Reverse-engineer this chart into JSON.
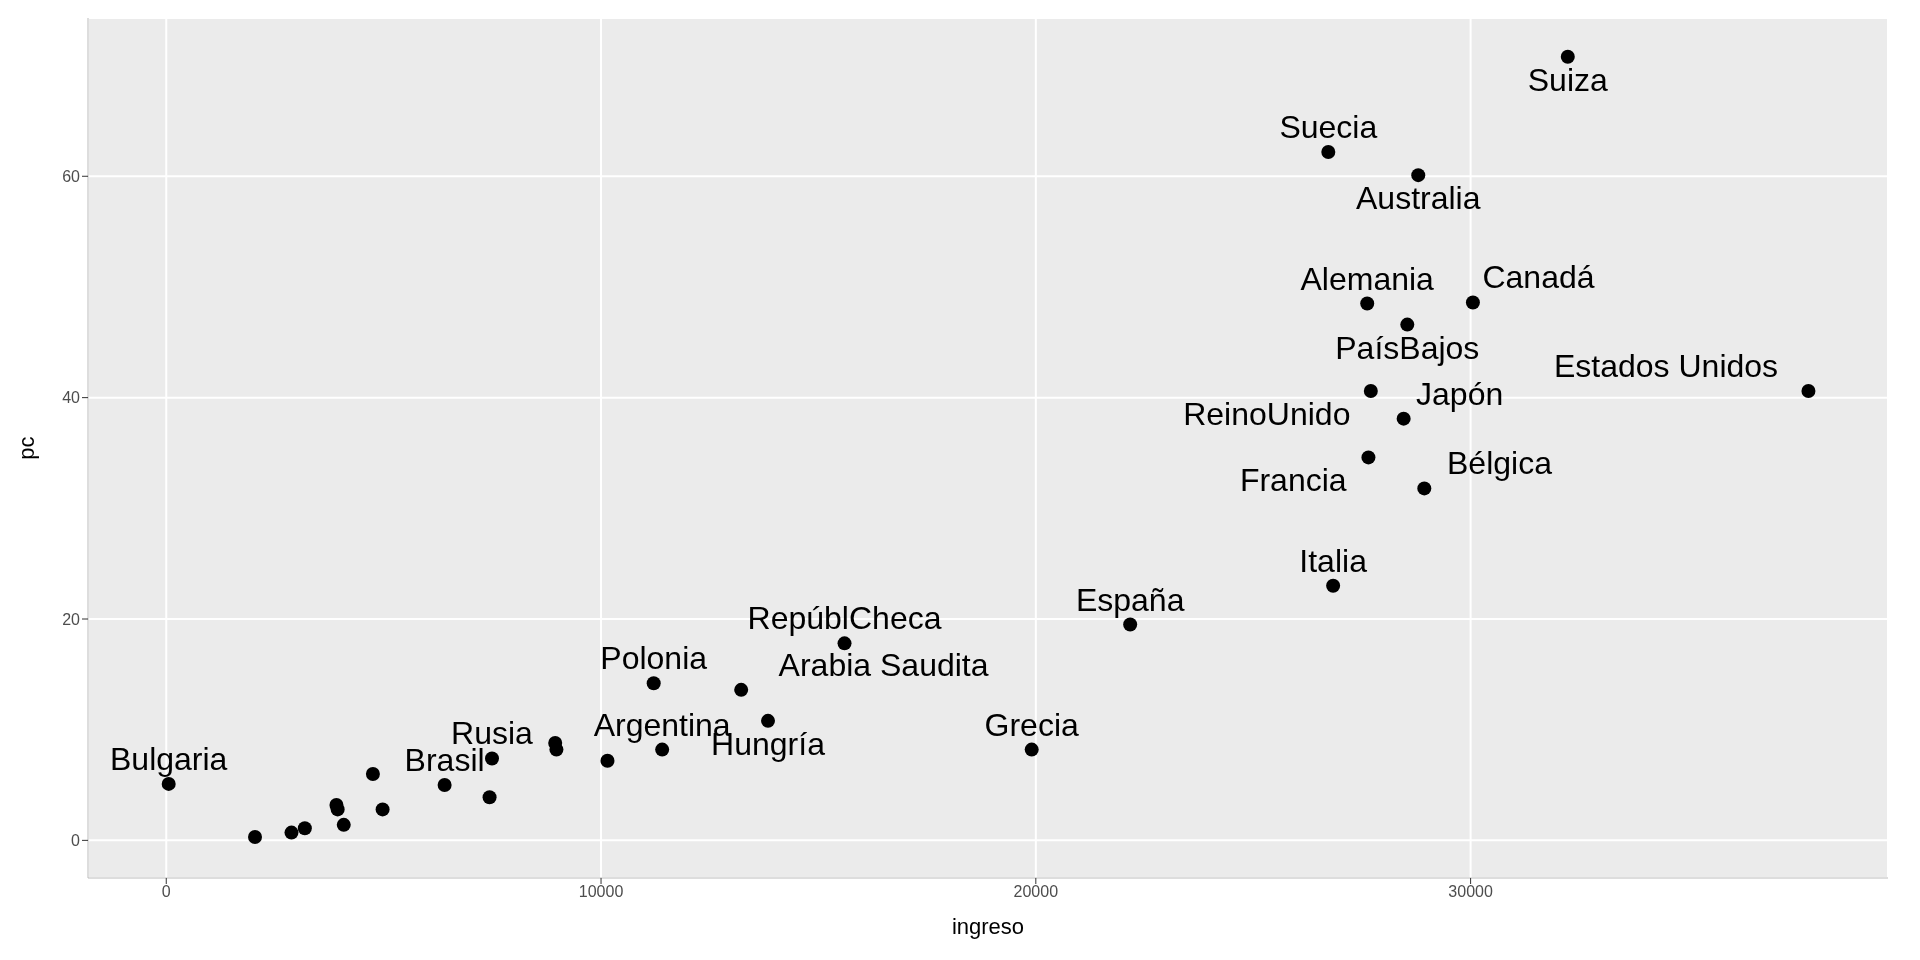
{
  "chart_data": {
    "type": "scatter",
    "xlabel": "ingreso",
    "ylabel": "pc",
    "xlim": [
      -1800,
      39600
    ],
    "ylim": [
      -3.4,
      74.3
    ],
    "xticks": [
      0,
      10000,
      20000,
      30000
    ],
    "yticks": [
      0,
      20,
      40,
      60
    ],
    "grid": true,
    "marker": "circle",
    "series": [
      {
        "color": "#000000",
        "x": [
          32235,
          26727,
          28796,
          27622,
          28544,
          30053,
          27705,
          28460,
          27650,
          28935,
          37770,
          26838,
          22170,
          15600,
          19905,
          13840,
          13223,
          11211,
          11406,
          10148,
          7492,
          8946,
          8974,
          6402,
          7436,
          56,
          4753,
          3914,
          3942,
          4082,
          4976,
          3187,
          2880,
          2041
        ],
        "values": [
          70.8,
          62.2,
          60.1,
          48.5,
          46.6,
          48.6,
          40.6,
          38.1,
          34.6,
          31.8,
          40.6,
          23.0,
          19.5,
          17.8,
          8.2,
          10.8,
          13.6,
          14.2,
          8.2,
          7.2,
          7.4,
          8.8,
          8.2,
          5.0,
          3.9,
          5.1,
          6.0,
          3.2,
          2.8,
          1.4,
          2.8,
          1.1,
          0.7,
          0.3
        ],
        "value_labels": [
          "Suiza",
          "Suecia",
          "Australia",
          "Alemania",
          "PaísBajos",
          "Canadá",
          "ReinoUnido",
          "Japón",
          "Francia",
          "Bélgica",
          "Estados Unidos",
          "Italia",
          "España",
          "RepúblCheca",
          "Grecia",
          "Hungría",
          "Arabia Saudita",
          "Polonia",
          "Argentina",
          null,
          "Rusia",
          null,
          null,
          "Brasil",
          null,
          "Bulgaria",
          null,
          null,
          null,
          null,
          null,
          null,
          null,
          null
        ]
      }
    ]
  }
}
